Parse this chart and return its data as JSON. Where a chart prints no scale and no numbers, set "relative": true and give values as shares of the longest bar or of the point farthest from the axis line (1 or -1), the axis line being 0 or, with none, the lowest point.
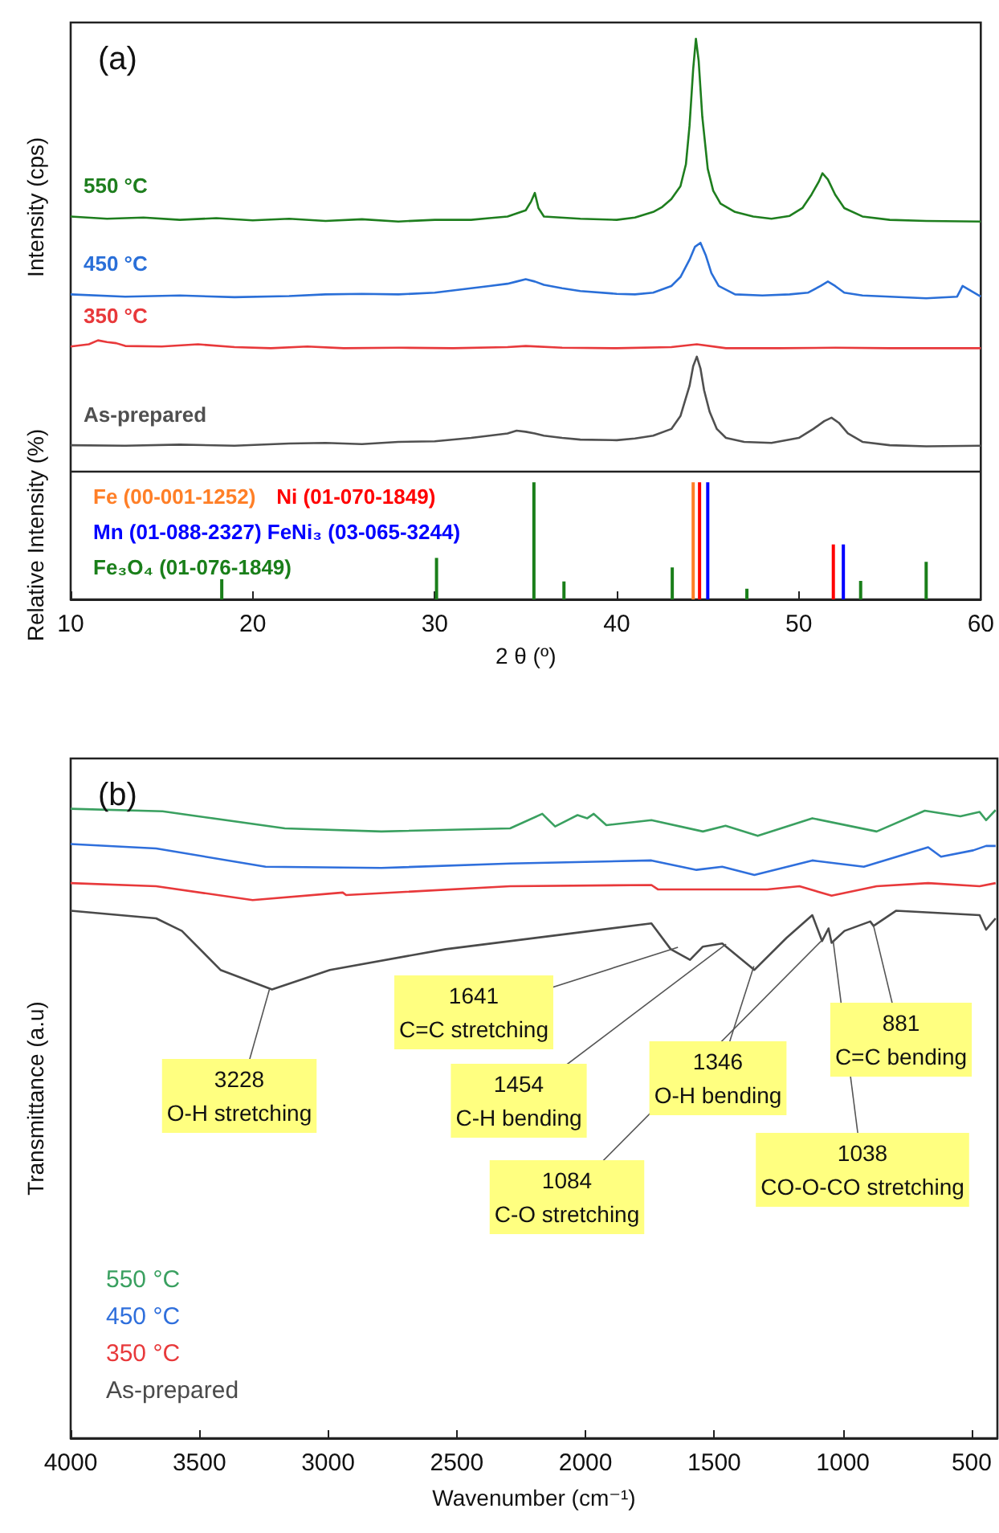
{
  "chart_data": [
    {
      "type": "line",
      "title": "(a)",
      "xlabel": "2 θ (º)",
      "ylabel": "Intensity (cps)",
      "relative": true,
      "xlim": [
        10,
        60
      ],
      "xticks": [
        10,
        20,
        30,
        40,
        50,
        60
      ],
      "legend": "bottom left",
      "marker": "none",
      "ref_lines": [
        {
          "axis": "y",
          "value": 0.226,
          "color": "#222222"
        }
      ],
      "annotations": [
        "Relative Intensity (%)"
      ],
      "series": [
        {
          "name": "550 °C",
          "color": "#1e7e1e",
          "x": [
            10,
            12,
            14,
            16,
            18,
            20,
            22,
            24,
            26,
            28,
            30,
            32,
            33,
            34,
            35,
            35.3,
            35.5,
            35.7,
            36,
            38,
            40,
            41,
            42,
            42.5,
            43,
            43.5,
            43.8,
            44.0,
            44.2,
            44.35,
            44.5,
            44.7,
            45,
            45.3,
            45.7,
            46.5,
            47.5,
            48.5,
            49.5,
            50.2,
            50.7,
            51.1,
            51.3,
            51.6,
            52,
            52.5,
            53.5,
            55,
            57,
            60
          ],
          "values": [
            0.683,
            0.679,
            0.681,
            0.677,
            0.68,
            0.676,
            0.679,
            0.675,
            0.678,
            0.674,
            0.677,
            0.677,
            0.68,
            0.683,
            0.694,
            0.71,
            0.725,
            0.698,
            0.683,
            0.679,
            0.677,
            0.681,
            0.691,
            0.7,
            0.714,
            0.737,
            0.776,
            0.845,
            0.946,
            1.0,
            0.961,
            0.861,
            0.768,
            0.729,
            0.706,
            0.691,
            0.683,
            0.679,
            0.684,
            0.698,
            0.722,
            0.745,
            0.76,
            0.749,
            0.722,
            0.698,
            0.683,
            0.677,
            0.675,
            0.674
          ]
        },
        {
          "name": "450 °C",
          "color": "#2a6fd8",
          "x": [
            10,
            13,
            16,
            19,
            22,
            24,
            26,
            28,
            30,
            31,
            32,
            33,
            34,
            34.5,
            35,
            35.5,
            36,
            37,
            38,
            40,
            41,
            42,
            43,
            43.5,
            44,
            44.3,
            44.6,
            44.9,
            45.2,
            45.6,
            46.5,
            48,
            49.5,
            50.5,
            51.2,
            51.6,
            52,
            52.5,
            53.5,
            55,
            57,
            58.7,
            59,
            60
          ],
          "values": [
            0.544,
            0.54,
            0.542,
            0.539,
            0.541,
            0.544,
            0.545,
            0.544,
            0.547,
            0.551,
            0.555,
            0.559,
            0.563,
            0.567,
            0.571,
            0.567,
            0.561,
            0.555,
            0.55,
            0.545,
            0.544,
            0.547,
            0.559,
            0.575,
            0.606,
            0.629,
            0.636,
            0.613,
            0.582,
            0.559,
            0.544,
            0.542,
            0.544,
            0.547,
            0.559,
            0.567,
            0.559,
            0.547,
            0.542,
            0.54,
            0.537,
            0.54,
            0.559,
            0.54
          ]
        },
        {
          "name": "350 °C",
          "color": "#e8393b",
          "x": [
            10,
            11,
            11.5,
            12,
            12.5,
            13,
            15,
            17,
            19,
            21,
            23,
            25,
            28,
            31,
            34,
            35,
            37,
            40,
            43,
            44.4,
            46,
            49,
            52,
            55,
            58,
            60
          ],
          "values": [
            0.451,
            0.455,
            0.462,
            0.459,
            0.457,
            0.452,
            0.451,
            0.455,
            0.45,
            0.448,
            0.451,
            0.448,
            0.449,
            0.448,
            0.45,
            0.452,
            0.449,
            0.448,
            0.45,
            0.455,
            0.448,
            0.448,
            0.449,
            0.448,
            0.448,
            0.448
          ]
        },
        {
          "name": "As-prepared",
          "color": "#505050",
          "x": [
            10,
            13,
            16,
            19,
            22,
            24,
            26,
            28,
            30,
            32,
            33,
            34,
            34.5,
            35,
            35.5,
            36,
            37,
            38,
            40,
            41,
            42,
            43,
            43.5,
            44,
            44.2,
            44.4,
            44.6,
            44.8,
            45.1,
            45.5,
            46,
            47,
            48.5,
            50,
            50.8,
            51.4,
            51.8,
            52.2,
            52.7,
            53.5,
            55,
            57,
            60
          ],
          "values": [
            0.275,
            0.274,
            0.276,
            0.274,
            0.278,
            0.279,
            0.277,
            0.281,
            0.282,
            0.288,
            0.292,
            0.296,
            0.301,
            0.299,
            0.296,
            0.292,
            0.288,
            0.285,
            0.284,
            0.287,
            0.292,
            0.304,
            0.327,
            0.381,
            0.416,
            0.433,
            0.412,
            0.373,
            0.335,
            0.304,
            0.288,
            0.281,
            0.279,
            0.288,
            0.304,
            0.318,
            0.324,
            0.315,
            0.296,
            0.281,
            0.275,
            0.273,
            0.274
          ]
        },
        {
          "type": "bar",
          "name": "Fe (00-001-1252)",
          "color": "#ff7f27",
          "x": [
            44.2
          ],
          "values": [
            0.209
          ]
        },
        {
          "type": "bar",
          "name": "Ni (01-070-1849)",
          "color": "#ff0000",
          "x": [
            44.55,
            51.9
          ],
          "values": [
            0.209,
            0.098
          ]
        },
        {
          "type": "bar",
          "name": "Mn (01-088-2327) FeNi₃ (03-065-3244)",
          "color": "#0000ff",
          "x": [
            45.0,
            52.45
          ],
          "values": [
            0.209,
            0.098
          ]
        },
        {
          "type": "bar",
          "name": "Fe₃O₄ (01-076-1849)",
          "color": "#1a7f1a",
          "x": [
            18.3,
            30.1,
            35.45,
            37.1,
            43.05,
            47.15,
            53.4,
            57.0
          ],
          "values": [
            0.036,
            0.074,
            0.209,
            0.032,
            0.057,
            0.019,
            0.033,
            0.067
          ]
        }
      ]
    },
    {
      "type": "line",
      "title": "(b)",
      "xlabel": "Wavenumber (cm⁻¹)",
      "ylabel": "Transmittance (a.u)",
      "relative": true,
      "xlim": [
        4000,
        400
      ],
      "xticks": [
        4000,
        3500,
        3000,
        2500,
        2000,
        1500,
        1000,
        500
      ],
      "legend": "bottom left",
      "marker": "none",
      "series": [
        {
          "name": "550 °C",
          "color": "#3aa060",
          "x": [
            4000,
            3643,
            3168,
            2793,
            2293,
            2168,
            2118,
            2031,
            1993,
            1968,
            1919,
            1744,
            1544,
            1456,
            1331,
            1119,
            869,
            682,
            544,
            469,
            444,
            407
          ],
          "values": [
            1.0,
            0.996,
            0.969,
            0.964,
            0.969,
            0.992,
            0.972,
            0.99,
            0.985,
            0.992,
            0.974,
            0.982,
            0.964,
            0.973,
            0.957,
            0.985,
            0.964,
            0.997,
            0.988,
            0.995,
            0.982,
            0.998
          ]
        },
        {
          "name": "450 °C",
          "color": "#2f6fdc",
          "x": [
            4000,
            3668,
            3243,
            2793,
            2293,
            1744,
            1569,
            1469,
            1344,
            1119,
            919,
            669,
            619,
            494,
            444,
            407
          ],
          "values": [
            0.944,
            0.937,
            0.908,
            0.906,
            0.913,
            0.918,
            0.903,
            0.908,
            0.895,
            0.918,
            0.908,
            0.939,
            0.924,
            0.934,
            0.941,
            0.941
          ]
        },
        {
          "name": "350 °C",
          "color": "#e8393b",
          "x": [
            4000,
            3668,
            3293,
            2943,
            2930,
            2293,
            1744,
            1719,
            1294,
            1169,
            1044,
            869,
            669,
            469,
            407
          ],
          "values": [
            0.882,
            0.877,
            0.855,
            0.867,
            0.863,
            0.877,
            0.879,
            0.872,
            0.872,
            0.877,
            0.862,
            0.877,
            0.882,
            0.877,
            0.882
          ]
        },
        {
          "name": "As-prepared",
          "color": "#4a4a4a",
          "x": [
            4000,
            3668,
            3568,
            3418,
            3218,
            2993,
            2543,
            1744,
            1669,
            1594,
            1544,
            1469,
            1344,
            1219,
            1119,
            1081,
            1056,
            1044,
            994,
            894,
            881,
            794,
            469,
            444,
            407
          ],
          "values": [
            0.838,
            0.826,
            0.806,
            0.744,
            0.713,
            0.744,
            0.777,
            0.818,
            0.777,
            0.76,
            0.781,
            0.786,
            0.744,
            0.795,
            0.831,
            0.79,
            0.81,
            0.787,
            0.806,
            0.821,
            0.814,
            0.838,
            0.831,
            0.808,
            0.826
          ]
        }
      ],
      "annotations": [
        {
          "text": "3228\nO-H stretching",
          "x": 3228,
          "y": 0.713
        },
        {
          "text": "1641\nC=C stretching",
          "x": 1641,
          "y": 0.78
        },
        {
          "text": "1454\nC-H bending",
          "x": 1454,
          "y": 0.785
        },
        {
          "text": "1346\nO-H bending",
          "x": 1346,
          "y": 0.75
        },
        {
          "text": "1084\nC-O stretching",
          "x": 1084,
          "y": 0.79
        },
        {
          "text": "1038\nCO-O-CO stretching",
          "x": 1038,
          "y": 0.79
        },
        {
          "text": "881\nC=C bending",
          "x": 881,
          "y": 0.814
        }
      ]
    }
  ]
}
